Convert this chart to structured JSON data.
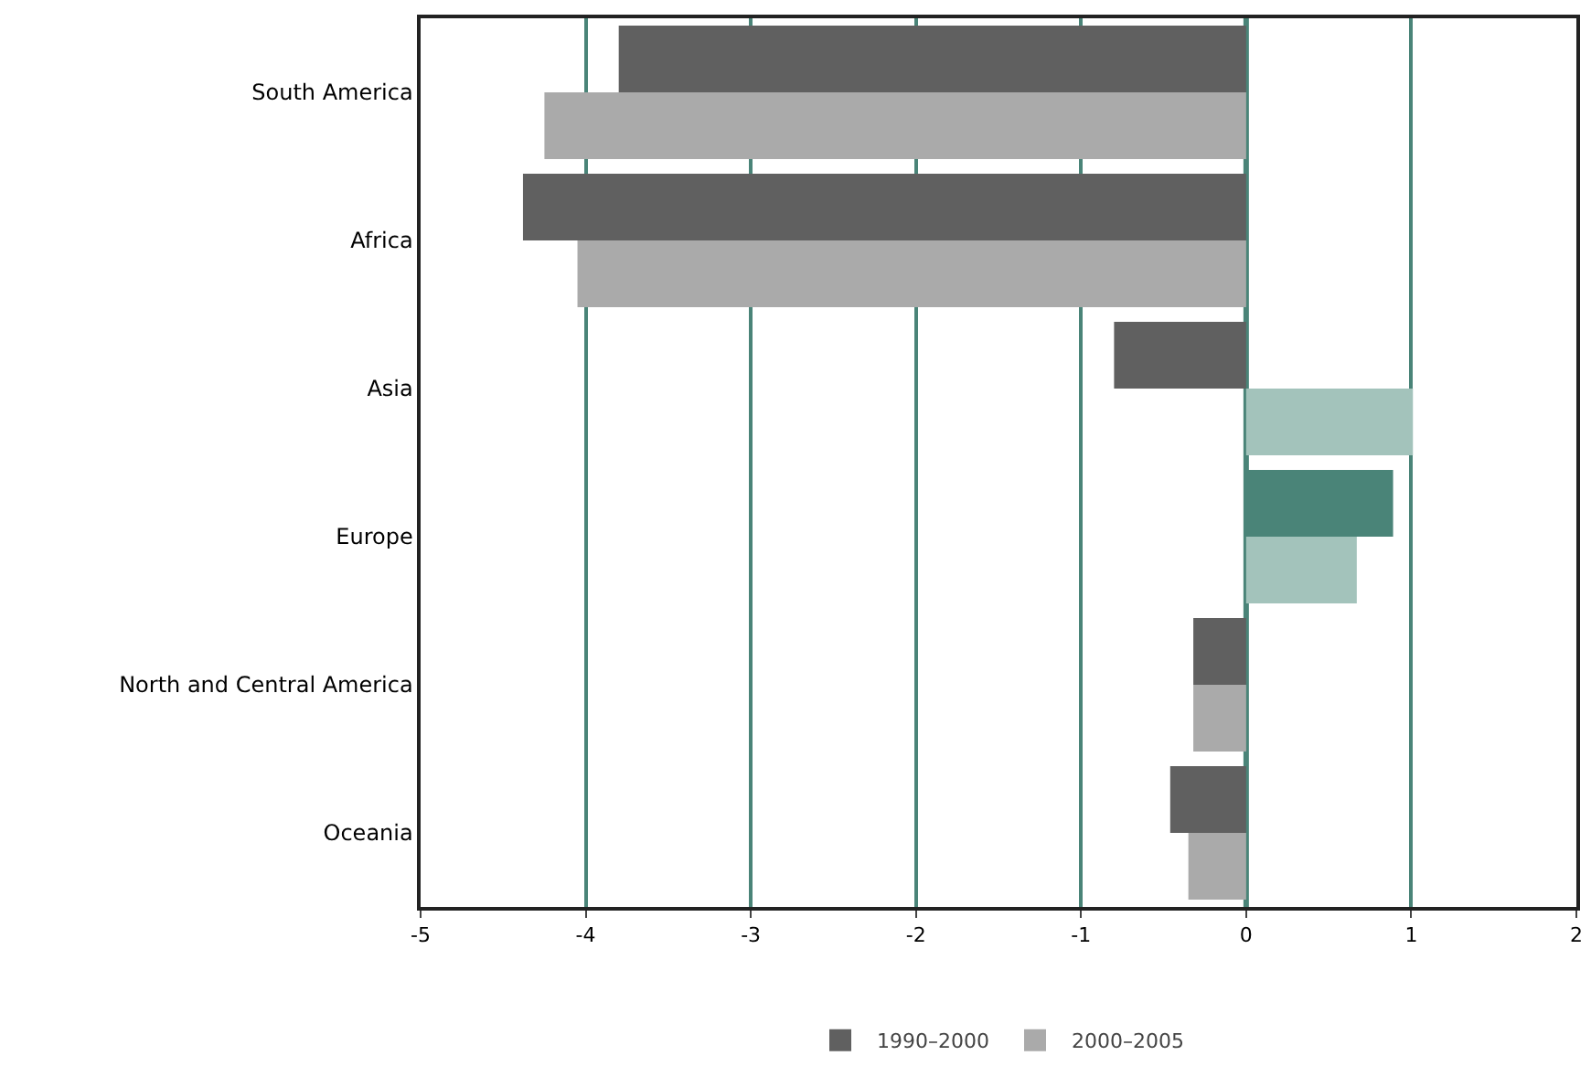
{
  "chart_data": {
    "type": "bar",
    "orientation": "horizontal",
    "categories": [
      "South America",
      "Africa",
      "Asia",
      "Europe",
      "North and Central America",
      "Oceania"
    ],
    "series": [
      {
        "name": "1990–2000",
        "values": [
          -3.8,
          -4.38,
          -0.8,
          0.89,
          -0.32,
          -0.46
        ],
        "colors": [
          "#606060",
          "#606060",
          "#606060",
          "#4a8478",
          "#606060",
          "#606060"
        ]
      },
      {
        "name": "2000–2005",
        "values": [
          -4.25,
          -4.05,
          1.01,
          0.67,
          -0.32,
          -0.35
        ],
        "colors": [
          "#aaaaaa",
          "#aaaaaa",
          "#a3c3bb",
          "#a3c3bb",
          "#aaaaaa",
          "#aaaaaa"
        ]
      }
    ],
    "xlim": [
      -5,
      2
    ],
    "xticks": [
      -5,
      -4,
      -3,
      -2,
      -1,
      0,
      1,
      2
    ],
    "grid": "x",
    "legend": "bottom",
    "ref_lines": [
      {
        "axis": "x",
        "value": 0,
        "color": "#4a8478"
      }
    ]
  }
}
